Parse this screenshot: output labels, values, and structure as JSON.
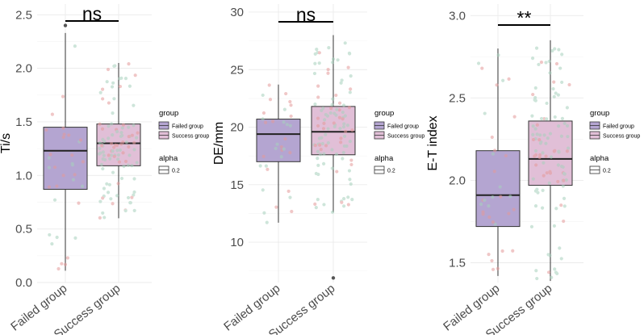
{
  "chart_data": [
    {
      "type": "boxplot",
      "ylabel": "Ti/s",
      "ylim": [
        0,
        2.6
      ],
      "yticks": [
        0.0,
        0.5,
        1.0,
        1.5,
        2.0,
        2.5
      ],
      "tick_labels": [
        "0.0",
        "0.5",
        "1.0",
        "1.5",
        "2.0",
        "2.5"
      ],
      "categories": [
        "Failed group",
        "Success group"
      ],
      "boxes": [
        {
          "group": "Failed group",
          "whisker_low": 0.11,
          "q1": 0.87,
          "median": 1.23,
          "q3": 1.45,
          "whisker_high": 2.33,
          "outliers": [
            2.4
          ]
        },
        {
          "group": "Success group",
          "whisker_low": 0.6,
          "q1": 1.09,
          "median": 1.3,
          "q3": 1.48,
          "whisker_high": 2.05,
          "outliers": []
        }
      ],
      "significance": "ns",
      "legend": {
        "group_title": "group",
        "group_items": [
          "Failed group",
          "Success group"
        ],
        "alpha_title": "alpha",
        "alpha_items": [
          "0.2"
        ],
        "colors": [
          "#b4a5d1",
          "#e1bfd7"
        ]
      },
      "grid": true,
      "jitter_colors": [
        "#e59a9a",
        "#a7d1bd"
      ]
    },
    {
      "type": "boxplot",
      "ylabel": "DE/mm",
      "ylim": [
        6.5,
        30.7
      ],
      "yticks": [
        10,
        15,
        20,
        25,
        30
      ],
      "tick_labels": [
        "10",
        "15",
        "20",
        "25",
        "30"
      ],
      "categories": [
        "Failed group",
        "Success group"
      ],
      "boxes": [
        {
          "group": "Failed group",
          "whisker_low": 11.7,
          "q1": 17.0,
          "median": 19.4,
          "q3": 20.7,
          "whisker_high": 23.7,
          "outliers": []
        },
        {
          "group": "Success group",
          "whisker_low": 12.6,
          "q1": 17.6,
          "median": 19.6,
          "q3": 21.8,
          "whisker_high": 28.0,
          "outliers": [
            6.9
          ]
        }
      ],
      "significance": "ns",
      "legend": {
        "group_title": "group",
        "group_items": [
          "Failed group",
          "Success group"
        ],
        "alpha_title": "alpha",
        "alpha_items": [
          "0.2"
        ],
        "colors": [
          "#b4a5d1",
          "#e1bfd7"
        ]
      },
      "grid": true,
      "jitter_colors": [
        "#e59a9a",
        "#a7d1bd"
      ]
    },
    {
      "type": "boxplot",
      "ylabel": "E-T index",
      "ylim": [
        1.38,
        3.07
      ],
      "yticks": [
        1.5,
        2.0,
        2.5,
        3.0
      ],
      "tick_labels": [
        "1.5",
        "2.0",
        "2.5",
        "3.0"
      ],
      "categories": [
        "Failed group",
        "Success group"
      ],
      "boxes": [
        {
          "group": "Failed group",
          "whisker_low": 1.42,
          "q1": 1.72,
          "median": 1.91,
          "q3": 2.18,
          "whisker_high": 2.8,
          "outliers": []
        },
        {
          "group": "Success group",
          "whisker_low": 1.39,
          "q1": 1.97,
          "median": 2.13,
          "q3": 2.36,
          "whisker_high": 2.85,
          "outliers": []
        }
      ],
      "significance": "**",
      "legend": {
        "group_title": "group",
        "group_items": [
          "Failed group",
          "Success group"
        ],
        "alpha_title": "alpha",
        "alpha_items": [
          "0.2"
        ],
        "colors": [
          "#b4a5d1",
          "#e1bfd7"
        ]
      },
      "grid": true,
      "jitter_colors": [
        "#e59a9a",
        "#a7d1bd"
      ]
    }
  ]
}
